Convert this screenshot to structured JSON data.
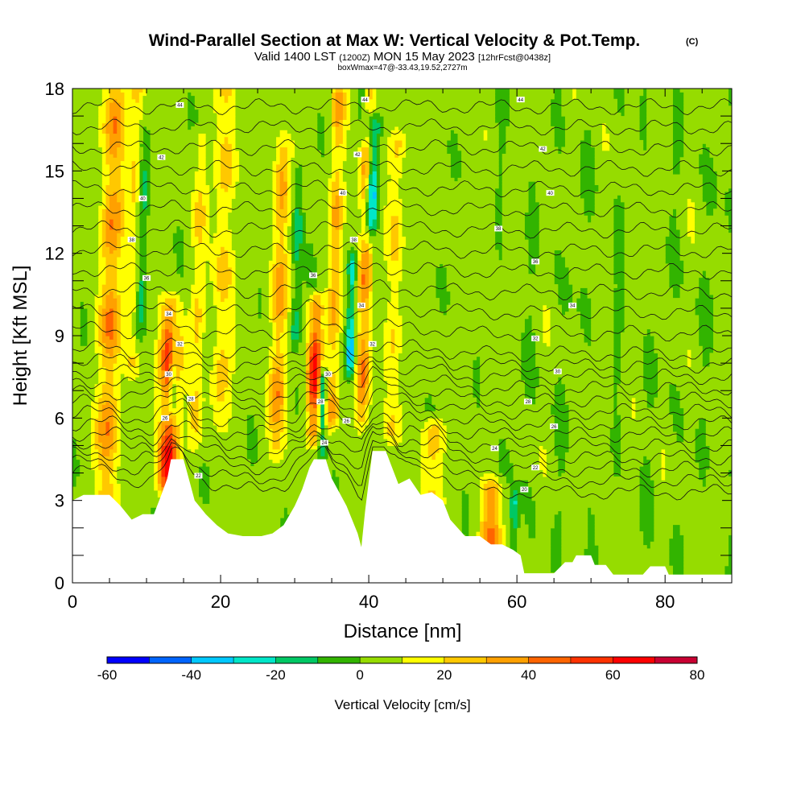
{
  "chart_data": {
    "type": "heatmap",
    "title": "Wind-Parallel Section at Max W: Vertical Velocity & Pot.Temp.",
    "title_mark": "(C)",
    "subtitle_parts": [
      "Valid 1400 LST ",
      "(1200Z)",
      " MON 15 May 2023 ",
      "[12hrFcst@0438z]"
    ],
    "info_line": "boxWmax=47@-33.43,19.52,2727m",
    "xlabel": "Distance [nm]",
    "ylabel": "Height [Kft MSL]",
    "xlim": [
      0,
      89
    ],
    "ylim": [
      0,
      18
    ],
    "x_ticks": [
      0,
      20,
      40,
      60,
      80
    ],
    "y_ticks": [
      0,
      3,
      6,
      9,
      12,
      15,
      18
    ],
    "grid": false,
    "colorbar": {
      "label": "Vertical Velocity [cm/s]",
      "min": -60,
      "max": 80,
      "step": 10,
      "tick_values": [
        -60,
        -40,
        -20,
        0,
        20,
        40,
        60,
        80
      ],
      "colors": [
        "#0000ff",
        "#0064ff",
        "#00c8ff",
        "#00e6c8",
        "#00c864",
        "#32b400",
        "#96dc00",
        "#ffff00",
        "#ffc800",
        "#ffa000",
        "#ff6400",
        "#ff3200",
        "#ff0000",
        "#c80032"
      ]
    },
    "terrain_kft": [
      [
        0,
        3.0
      ],
      [
        1.5,
        3.2
      ],
      [
        3,
        3.2
      ],
      [
        5,
        3.2
      ],
      [
        6.5,
        2.8
      ],
      [
        8,
        2.3
      ],
      [
        9.5,
        2.5
      ],
      [
        11,
        2.5
      ],
      [
        12,
        3.2
      ],
      [
        12.8,
        3.8
      ],
      [
        13.3,
        4.5
      ],
      [
        15,
        4.5
      ],
      [
        15.8,
        3.7
      ],
      [
        16.5,
        3.0
      ],
      [
        18,
        2.5
      ],
      [
        19.5,
        2.1
      ],
      [
        21,
        1.8
      ],
      [
        23,
        1.7
      ],
      [
        25.5,
        1.7
      ],
      [
        27,
        1.8
      ],
      [
        28.5,
        2.1
      ],
      [
        30,
        2.8
      ],
      [
        31,
        3.4
      ],
      [
        32,
        4.2
      ],
      [
        32.6,
        4.5
      ],
      [
        34.2,
        4.5
      ],
      [
        35,
        3.8
      ],
      [
        36,
        3.3
      ],
      [
        37,
        2.8
      ],
      [
        38.5,
        1.8
      ],
      [
        39,
        1.3
      ],
      [
        39.5,
        2.6
      ],
      [
        40.5,
        4.8
      ],
      [
        42.3,
        4.8
      ],
      [
        43,
        4.3
      ],
      [
        44,
        3.6
      ],
      [
        45.5,
        3.8
      ],
      [
        47,
        3.2
      ],
      [
        48.5,
        3.3
      ],
      [
        50,
        3.0
      ],
      [
        51,
        2.3
      ],
      [
        53,
        1.7
      ],
      [
        55,
        1.7
      ],
      [
        56.5,
        1.4
      ],
      [
        58,
        1.4
      ],
      [
        59.5,
        1.2
      ],
      [
        60.5,
        1.0
      ],
      [
        61,
        0.35
      ],
      [
        65,
        0.35
      ],
      [
        66.5,
        0.75
      ],
      [
        67.5,
        0.75
      ],
      [
        68,
        1.0
      ],
      [
        70,
        1.0
      ],
      [
        70.5,
        0.65
      ],
      [
        72,
        0.65
      ],
      [
        73,
        0.3
      ],
      [
        77,
        0.3
      ],
      [
        78,
        0.6
      ],
      [
        80,
        0.6
      ],
      [
        80.5,
        0.3
      ],
      [
        89,
        0.3
      ]
    ],
    "updraft_columns": [
      {
        "x": 4.5,
        "w": 1.6,
        "peak": 38,
        "y0": 2.0,
        "y1": 18
      },
      {
        "x": 8.0,
        "w": 1.0,
        "peak": 22,
        "y0": 8.0,
        "y1": 18
      },
      {
        "x": 12.8,
        "w": 1.4,
        "peak": 65,
        "y0": 3.5,
        "y1": 10
      },
      {
        "x": 16.5,
        "w": 1.0,
        "peak": 20,
        "y0": 5.0,
        "y1": 16
      },
      {
        "x": 20.0,
        "w": 1.4,
        "peak": 25,
        "y0": 6.0,
        "y1": 18
      },
      {
        "x": 27.5,
        "w": 1.2,
        "peak": 35,
        "y0": 5.0,
        "y1": 16
      },
      {
        "x": 32.5,
        "w": 1.0,
        "peak": 65,
        "y0": 5.5,
        "y1": 10
      },
      {
        "x": 35.0,
        "w": 1.0,
        "peak": 30,
        "y0": 6.0,
        "y1": 18
      },
      {
        "x": 39.0,
        "w": 1.0,
        "peak": 40,
        "y0": 6.0,
        "y1": 18
      },
      {
        "x": 43.0,
        "w": 1.2,
        "peak": 22,
        "y0": 5.5,
        "y1": 16
      },
      {
        "x": 48.5,
        "w": 1.5,
        "peak": 30,
        "y0": 3.0,
        "y1": 5.5
      },
      {
        "x": 56.5,
        "w": 1.5,
        "peak": 45,
        "y0": 1.5,
        "y1": 3.3
      }
    ],
    "downdraft_columns": [
      {
        "x": 13.5,
        "w": 0.6,
        "peak": -35,
        "y0": 6.5,
        "y1": 9.5
      },
      {
        "x": 9.0,
        "w": 0.7,
        "peak": -22,
        "y0": 9.0,
        "y1": 16
      },
      {
        "x": 33.6,
        "w": 0.5,
        "peak": -45,
        "y0": 5.0,
        "y1": 7.5
      },
      {
        "x": 37.5,
        "w": 0.6,
        "peak": -40,
        "y0": 8.0,
        "y1": 11.5
      },
      {
        "x": 40.3,
        "w": 0.8,
        "peak": -55,
        "y0": 13.0,
        "y1": 16.5
      },
      {
        "x": 39.2,
        "w": 0.8,
        "peak": -25,
        "y0": 16.5,
        "y1": 18
      },
      {
        "x": 30.0,
        "w": 0.7,
        "peak": -20,
        "y0": 9.0,
        "y1": 15
      },
      {
        "x": 59.5,
        "w": 0.6,
        "peak": -22,
        "y0": 1.0,
        "y1": 3.0
      }
    ],
    "isentrope_labels": [
      {
        "x": 14.5,
        "y": 17.4,
        "text": "44"
      },
      {
        "x": 39.5,
        "y": 17.6,
        "text": "44"
      },
      {
        "x": 60.5,
        "y": 17.6,
        "text": "44"
      },
      {
        "x": 12.0,
        "y": 15.5,
        "text": "42"
      },
      {
        "x": 38.5,
        "y": 15.6,
        "text": "42"
      },
      {
        "x": 63.5,
        "y": 15.8,
        "text": "42"
      },
      {
        "x": 9.5,
        "y": 14.0,
        "text": "40"
      },
      {
        "x": 36.5,
        "y": 14.2,
        "text": "40"
      },
      {
        "x": 64.5,
        "y": 14.2,
        "text": "40"
      },
      {
        "x": 8.0,
        "y": 12.5,
        "text": "38"
      },
      {
        "x": 38.0,
        "y": 12.5,
        "text": "38"
      },
      {
        "x": 57.5,
        "y": 12.9,
        "text": "38"
      },
      {
        "x": 10.0,
        "y": 11.1,
        "text": "36"
      },
      {
        "x": 32.5,
        "y": 11.2,
        "text": "36"
      },
      {
        "x": 62.5,
        "y": 11.7,
        "text": "36"
      },
      {
        "x": 13.0,
        "y": 9.8,
        "text": "34"
      },
      {
        "x": 39.0,
        "y": 10.1,
        "text": "34"
      },
      {
        "x": 67.5,
        "y": 10.1,
        "text": "34"
      },
      {
        "x": 14.5,
        "y": 8.7,
        "text": "32"
      },
      {
        "x": 40.5,
        "y": 8.7,
        "text": "32"
      },
      {
        "x": 62.5,
        "y": 8.9,
        "text": "32"
      },
      {
        "x": 13.0,
        "y": 7.6,
        "text": "30"
      },
      {
        "x": 34.5,
        "y": 7.6,
        "text": "30"
      },
      {
        "x": 65.5,
        "y": 7.7,
        "text": "30"
      },
      {
        "x": 16.0,
        "y": 6.7,
        "text": "28"
      },
      {
        "x": 33.5,
        "y": 6.6,
        "text": "28"
      },
      {
        "x": 61.5,
        "y": 6.6,
        "text": "28"
      },
      {
        "x": 12.5,
        "y": 6.0,
        "text": "26"
      },
      {
        "x": 37.0,
        "y": 5.9,
        "text": "26"
      },
      {
        "x": 65.0,
        "y": 5.7,
        "text": "26"
      },
      {
        "x": 34.0,
        "y": 5.1,
        "text": "24"
      },
      {
        "x": 57.0,
        "y": 4.9,
        "text": "24"
      },
      {
        "x": 17.0,
        "y": 3.9,
        "text": "22"
      },
      {
        "x": 62.5,
        "y": 4.2,
        "text": "22"
      },
      {
        "x": 61.0,
        "y": 3.4,
        "text": "20"
      }
    ]
  }
}
